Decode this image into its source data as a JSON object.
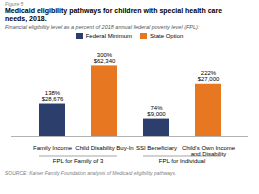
{
  "chart_data": {
    "type": "bar",
    "figure_label": "Figure 5",
    "title": "Medicaid eligibility pathways for children with special health care\nneeds, 2018.",
    "subtitle": "Financial eligibility level as a percent of 2018 annual federal poverty level (FPL):",
    "caption": "SOURCE: Kaiser Family Foundation analysis of Medicaid eligibility pathways.",
    "categories": [
      "Family Income",
      "Child Disability Buy-In",
      "SSI Beneficiary",
      "Child's Own Income\nand Disability"
    ],
    "series": [
      {
        "name": "Federal Minimum",
        "color": "#2c3e6b",
        "values": [
          138,
          0,
          74,
          0
        ],
        "value_labels": [
          "138%\n$28,676",
          null,
          "74%\n$9,000",
          null
        ]
      },
      {
        "name": "State Option",
        "color": "#e87722",
        "values": [
          0,
          300,
          0,
          222
        ],
        "value_labels": [
          null,
          "300%\n$62,340",
          null,
          "222%\n$27,000"
        ]
      }
    ],
    "groups": [
      {
        "label": "FPL for Family of 3",
        "categories": [
          "Family Income",
          "Child Disability Buy-In"
        ]
      },
      {
        "label": "FPL for Individual",
        "categories": [
          "SSI Beneficiary",
          "Child's Own Income\nand Disability"
        ]
      }
    ],
    "ylim": [
      0,
      340
    ],
    "grid": false,
    "data_labels": true,
    "tick_labels": "x",
    "legend": "top"
  }
}
